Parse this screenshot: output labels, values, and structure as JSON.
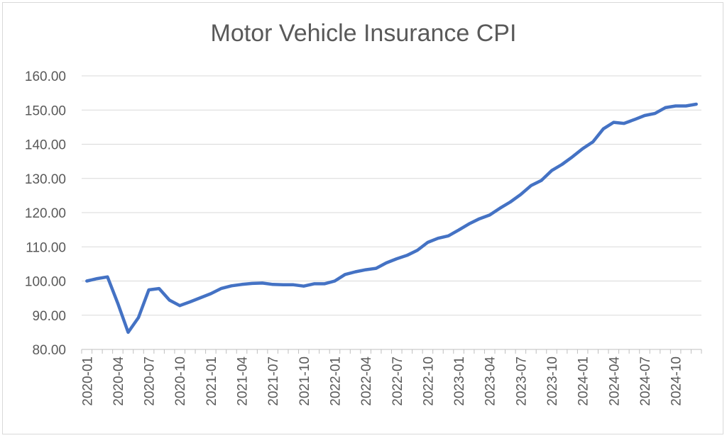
{
  "chart_data": {
    "type": "line",
    "title": "Motor Vehicle Insurance CPI",
    "xlabel": "",
    "ylabel": "",
    "ylim": [
      80,
      160
    ],
    "y_ticks": [
      "80.00",
      "90.00",
      "100.00",
      "110.00",
      "120.00",
      "130.00",
      "140.00",
      "150.00",
      "160.00"
    ],
    "x_ticks": [
      "2020-01",
      "2020-04",
      "2020-07",
      "2020-10",
      "2021-01",
      "2021-04",
      "2021-07",
      "2021-10",
      "2022-01",
      "2022-04",
      "2022-07",
      "2022-10",
      "2023-01",
      "2023-04",
      "2023-07",
      "2023-10",
      "2024-01",
      "2024-04",
      "2024-07",
      "2024-10"
    ],
    "grid": true,
    "legend": "none",
    "series": [
      {
        "color": "#4472C4",
        "x": [
          "2020-01",
          "2020-02",
          "2020-03",
          "2020-04",
          "2020-05",
          "2020-06",
          "2020-07",
          "2020-08",
          "2020-09",
          "2020-10",
          "2020-11",
          "2020-12",
          "2021-01",
          "2021-02",
          "2021-03",
          "2021-04",
          "2021-05",
          "2021-06",
          "2021-07",
          "2021-08",
          "2021-09",
          "2021-10",
          "2021-11",
          "2021-12",
          "2022-01",
          "2022-02",
          "2022-03",
          "2022-04",
          "2022-05",
          "2022-06",
          "2022-07",
          "2022-08",
          "2022-09",
          "2022-10",
          "2022-11",
          "2022-12",
          "2023-01",
          "2023-02",
          "2023-03",
          "2023-04",
          "2023-05",
          "2023-06",
          "2023-07",
          "2023-08",
          "2023-09",
          "2023-10",
          "2023-11",
          "2023-12",
          "2024-01",
          "2024-02",
          "2024-03",
          "2024-04",
          "2024-05",
          "2024-06",
          "2024-07",
          "2024-08",
          "2024-09",
          "2024-10",
          "2024-11",
          "2024-12"
        ],
        "values": [
          100.0,
          100.7,
          101.2,
          93.5,
          85.0,
          89.3,
          97.4,
          97.8,
          94.4,
          92.8,
          93.9,
          95.1,
          96.3,
          97.8,
          98.6,
          99.0,
          99.3,
          99.4,
          99.0,
          98.9,
          98.9,
          98.5,
          99.2,
          99.2,
          100.0,
          101.9,
          102.7,
          103.3,
          103.7,
          105.3,
          106.5,
          107.5,
          109.0,
          111.3,
          112.5,
          113.2,
          114.9,
          116.7,
          118.2,
          119.3,
          121.3,
          123.1,
          125.3,
          127.9,
          129.4,
          132.3,
          134.1,
          136.3,
          138.7,
          140.7,
          144.5,
          146.4,
          146.1,
          147.2,
          148.4,
          149.0,
          150.7,
          151.2,
          151.2,
          151.7
        ]
      }
    ]
  }
}
